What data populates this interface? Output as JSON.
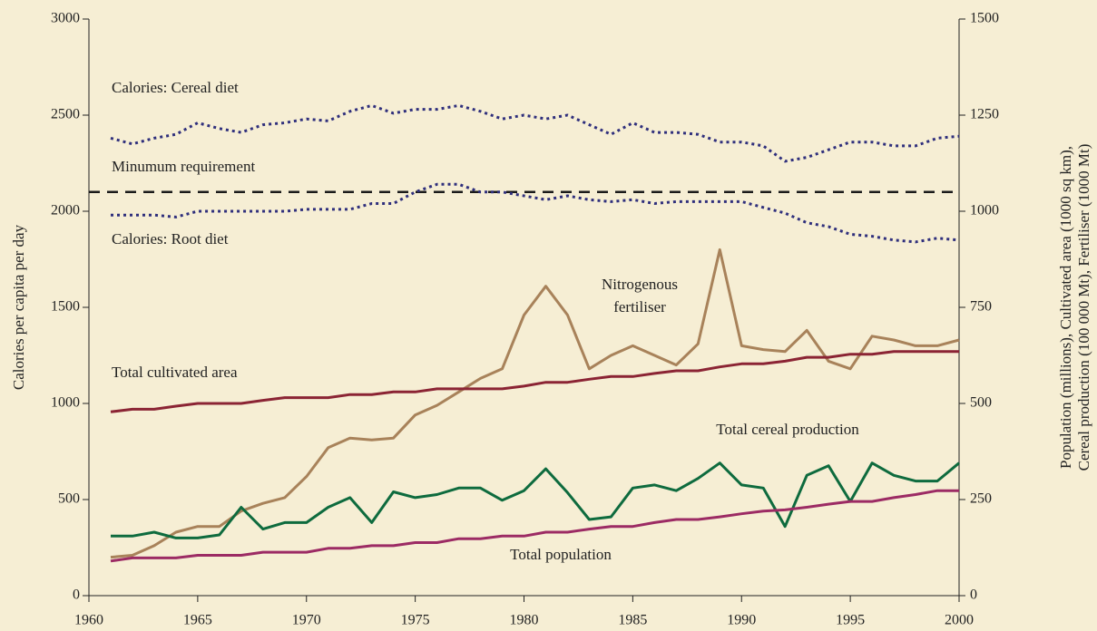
{
  "chart_data": {
    "type": "line",
    "x": [
      1961,
      1962,
      1963,
      1964,
      1965,
      1966,
      1967,
      1968,
      1969,
      1970,
      1971,
      1972,
      1973,
      1974,
      1975,
      1976,
      1977,
      1978,
      1979,
      1980,
      1981,
      1982,
      1983,
      1984,
      1985,
      1986,
      1987,
      1988,
      1989,
      1990,
      1991,
      1992,
      1993,
      1994,
      1995,
      1996,
      1997,
      1998,
      1999,
      2000
    ],
    "xlim": [
      1960,
      2000
    ],
    "xticks": [
      1960,
      1965,
      1970,
      1975,
      1980,
      1985,
      1990,
      1995,
      2000
    ],
    "ylim": [
      0,
      3000
    ],
    "yticks": [
      0,
      500,
      1000,
      1500,
      2000,
      2500,
      3000
    ],
    "y2lim": [
      0,
      1500
    ],
    "y2ticks": [
      0,
      250,
      500,
      750,
      1000,
      1250,
      1500
    ],
    "ylabel": "Calories per capita per day",
    "y2label": [
      "Population (millions), Cultivated area (1000 sq km),",
      "Cereal production (100 000 Mt), Fertiliser (1000 Mt)"
    ],
    "background": "#f6eed4",
    "reference_lines": [
      {
        "label": "Minumum requirement",
        "value": 2100,
        "color": "#1a1a1a",
        "style": "dashed"
      }
    ],
    "series": [
      {
        "name": "Calories: Cereal diet",
        "color": "#2f2f7c",
        "style": "dotted",
        "values": [
          2380,
          2350,
          2380,
          2400,
          2460,
          2430,
          2410,
          2450,
          2460,
          2480,
          2470,
          2520,
          2550,
          2510,
          2530,
          2530,
          2550,
          2520,
          2480,
          2500,
          2480,
          2500,
          2450,
          2400,
          2460,
          2410,
          2410,
          2400,
          2360,
          2360,
          2340,
          2260,
          2280,
          2320,
          2360,
          2360,
          2340,
          2340,
          2380,
          2390
        ]
      },
      {
        "name": "Calories: Root diet",
        "color": "#2f2f7c",
        "style": "dotted",
        "values": [
          1980,
          1980,
          1980,
          1970,
          2000,
          2000,
          2000,
          2000,
          2000,
          2010,
          2010,
          2010,
          2040,
          2040,
          2100,
          2140,
          2140,
          2100,
          2100,
          2080,
          2060,
          2080,
          2060,
          2050,
          2060,
          2040,
          2050,
          2050,
          2050,
          2050,
          2020,
          1990,
          1940,
          1920,
          1880,
          1870,
          1850,
          1840,
          1860,
          1850
        ]
      },
      {
        "name": "Nitrogenous fertiliser",
        "color": "#a8825a",
        "style": "solid",
        "axis": "y2",
        "values": [
          100,
          105,
          130,
          165,
          180,
          180,
          220,
          240,
          255,
          310,
          385,
          410,
          405,
          410,
          470,
          495,
          530,
          565,
          590,
          730,
          805,
          730,
          590,
          625,
          650,
          625,
          600,
          655,
          900,
          650,
          640,
          635,
          690,
          610,
          590,
          675,
          665,
          650,
          650,
          665
        ]
      },
      {
        "name": "Total cultivated area",
        "color": "#8b2434",
        "style": "solid",
        "axis": "y2",
        "values": [
          478,
          485,
          485,
          493,
          500,
          500,
          500,
          508,
          515,
          515,
          515,
          523,
          523,
          530,
          530,
          538,
          538,
          538,
          538,
          545,
          555,
          555,
          563,
          570,
          570,
          578,
          585,
          585,
          595,
          603,
          603,
          610,
          620,
          620,
          628,
          628,
          635,
          635,
          635,
          635
        ]
      },
      {
        "name": "Total cereal production",
        "color": "#0e6b3e",
        "style": "solid",
        "axis": "y2",
        "values": [
          155,
          155,
          165,
          150,
          150,
          158,
          230,
          173,
          190,
          190,
          230,
          255,
          190,
          270,
          255,
          263,
          280,
          280,
          248,
          273,
          330,
          268,
          198,
          205,
          280,
          288,
          273,
          305,
          345,
          288,
          280,
          180,
          313,
          338,
          245,
          345,
          313,
          298,
          298,
          345
        ]
      },
      {
        "name": "Total population",
        "color": "#9c2b64",
        "style": "solid",
        "axis": "y2",
        "values": [
          90,
          98,
          98,
          98,
          105,
          105,
          105,
          113,
          113,
          113,
          123,
          123,
          130,
          130,
          138,
          138,
          148,
          148,
          155,
          155,
          165,
          165,
          173,
          180,
          180,
          190,
          198,
          198,
          205,
          213,
          220,
          223,
          230,
          238,
          245,
          245,
          255,
          263,
          273,
          273
        ]
      }
    ]
  }
}
